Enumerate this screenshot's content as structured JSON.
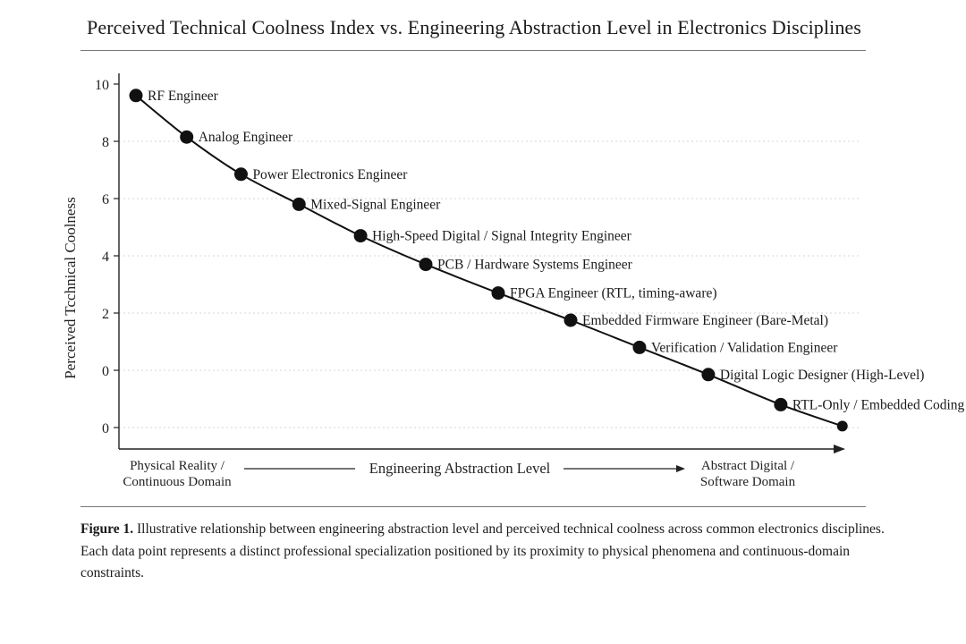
{
  "title": "Perceived Technical Coolness Index vs. Engineering Abstraction Level in Electronics Disciplines",
  "caption": {
    "label": "Figure 1.",
    "text": "Illustrative relationship between engineering abstraction level and perceived technical coolness across common electronics disciplines. Each data point represents a distinct professional specialization positioned by its proximity to physical phenomena and continuous-domain constraints."
  },
  "chart_data": {
    "type": "line",
    "title": "Perceived Technical Coolness Index vs. Engineering Abstraction Level in Electronics Disciplines",
    "ylabel": "Perceived Tcchnical Coolness",
    "xlabel": "Engineering Abstraction Level",
    "x_left_label": [
      "Physical Reality /",
      "Continuous Domain"
    ],
    "x_right_label": [
      "Abstract Digital /",
      "Software Domain"
    ],
    "y_ticks": [
      "10",
      "8",
      "6",
      "4",
      "2",
      "0",
      "0"
    ],
    "grid": true,
    "series": [
      {
        "points": [
          {
            "label": "RF Engineer",
            "x": 0.0,
            "y": 9.6
          },
          {
            "label": "Analog Engineer",
            "x": 0.07,
            "y": 8.15
          },
          {
            "label": "Power Electronics Engineer",
            "x": 0.145,
            "y": 6.85
          },
          {
            "label": "Mixed-Signal Engineer",
            "x": 0.225,
            "y": 5.8
          },
          {
            "label": "High-Speed Digital / Signal Integrity Engineer",
            "x": 0.31,
            "y": 4.7
          },
          {
            "label": "PCB / Hardware Systems Engineer",
            "x": 0.4,
            "y": 3.7
          },
          {
            "label": "FPGA Engineer (RTL, timing-aware)",
            "x": 0.5,
            "y": 2.7
          },
          {
            "label": "Embedded Firmware Engineer (Bare-Metal)",
            "x": 0.6,
            "y": 1.75
          },
          {
            "label": "Verification / Validation Engineer",
            "x": 0.695,
            "y": 0.8
          },
          {
            "label": "Digital Logic Designer  (High-Level)",
            "x": 0.79,
            "y": -0.15
          },
          {
            "label": "RTL-Only / Embedded Coding",
            "x": 0.89,
            "y": -1.2
          },
          {
            "label": "",
            "x": 0.975,
            "y": -1.95
          }
        ]
      }
    ]
  }
}
